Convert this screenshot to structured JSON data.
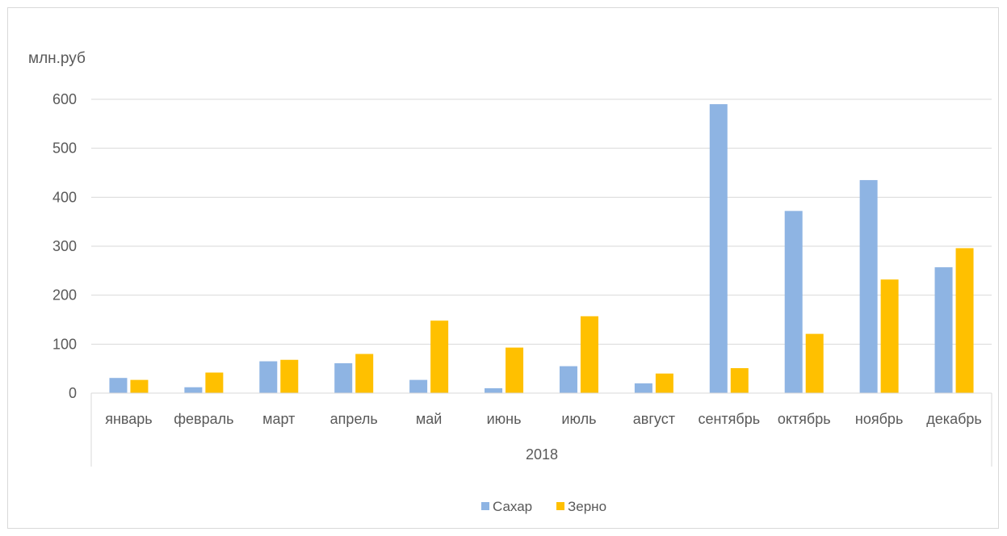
{
  "chart_data": {
    "type": "bar",
    "title": "",
    "ylabel": "млн.руб",
    "xlabel": "",
    "group_label": "2018",
    "categories": [
      "январь",
      "февраль",
      "март",
      "апрель",
      "май",
      "июнь",
      "июль",
      "август",
      "сентябрь",
      "октябрь",
      "ноябрь",
      "декабрь"
    ],
    "series": [
      {
        "name": "Сахар",
        "color": "#8eb4e3",
        "values": [
          31,
          12,
          65,
          61,
          27,
          10,
          55,
          20,
          590,
          372,
          435,
          257
        ]
      },
      {
        "name": "Зерно",
        "color": "#ffc000",
        "values": [
          27,
          42,
          68,
          80,
          148,
          93,
          157,
          40,
          51,
          121,
          232,
          296
        ]
      }
    ],
    "ylim": [
      0,
      600
    ],
    "yticks": [
      "0",
      "100",
      "200",
      "300",
      "400",
      "500",
      "600"
    ],
    "grid": true,
    "legend_position": "bottom"
  }
}
